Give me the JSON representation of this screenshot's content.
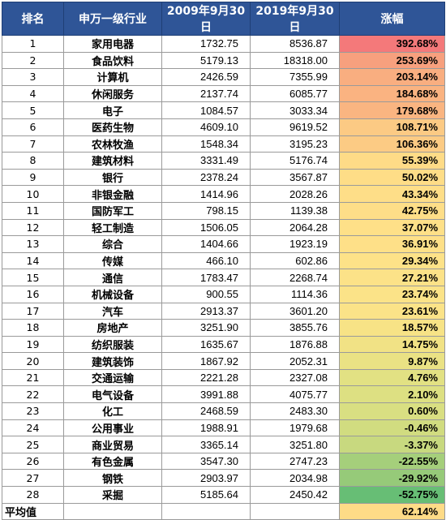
{
  "header": {
    "rank": "排名",
    "industry": "申万一级行业",
    "date1": "2009年9月30日",
    "date2": "2019年9月30日",
    "change": "涨幅"
  },
  "rows": [
    {
      "rank": "1",
      "industry": "家用电器",
      "v2009": "1732.75",
      "v2019": "8536.87",
      "change": "392.68%",
      "color": "#f4797a"
    },
    {
      "rank": "2",
      "industry": "食品饮料",
      "v2009": "5179.13",
      "v2019": "18318.00",
      "change": "253.69%",
      "color": "#f7a07e"
    },
    {
      "rank": "3",
      "industry": "计算机",
      "v2009": "2426.59",
      "v2019": "7355.99",
      "change": "203.14%",
      "color": "#f9ae80"
    },
    {
      "rank": "4",
      "industry": "休闲服务",
      "v2009": "2137.74",
      "v2019": "6085.77",
      "change": "184.68%",
      "color": "#fab381"
    },
    {
      "rank": "5",
      "industry": "电子",
      "v2009": "1084.57",
      "v2019": "3033.34",
      "change": "179.68%",
      "color": "#fab581"
    },
    {
      "rank": "6",
      "industry": "医药生物",
      "v2009": "4609.10",
      "v2019": "9619.52",
      "change": "108.71%",
      "color": "#fcca84"
    },
    {
      "rank": "7",
      "industry": "农林牧渔",
      "v2009": "1548.34",
      "v2019": "3195.23",
      "change": "106.36%",
      "color": "#fccb84"
    },
    {
      "rank": "8",
      "industry": "建筑材料",
      "v2009": "3331.49",
      "v2019": "5176.74",
      "change": "55.39%",
      "color": "#fedb87"
    },
    {
      "rank": "9",
      "industry": "银行",
      "v2009": "2378.24",
      "v2019": "3567.87",
      "change": "50.02%",
      "color": "#fedd87"
    },
    {
      "rank": "10",
      "industry": "非银金融",
      "v2009": "1414.96",
      "v2019": "2028.26",
      "change": "43.34%",
      "color": "#fede88"
    },
    {
      "rank": "11",
      "industry": "国防军工",
      "v2009": "798.15",
      "v2019": "1139.38",
      "change": "42.75%",
      "color": "#fede88"
    },
    {
      "rank": "12",
      "industry": "轻工制造",
      "v2009": "1506.05",
      "v2019": "2064.28",
      "change": "37.07%",
      "color": "#fee088"
    },
    {
      "rank": "13",
      "industry": "综合",
      "v2009": "1404.66",
      "v2019": "1923.19",
      "change": "36.91%",
      "color": "#fee088"
    },
    {
      "rank": "14",
      "industry": "传媒",
      "v2009": "466.10",
      "v2019": "602.86",
      "change": "29.34%",
      "color": "#fde288"
    },
    {
      "rank": "15",
      "industry": "通信",
      "v2009": "1783.47",
      "v2019": "2268.74",
      "change": "27.21%",
      "color": "#fce288"
    },
    {
      "rank": "16",
      "industry": "机械设备",
      "v2009": "900.55",
      "v2019": "1114.36",
      "change": "23.74%",
      "color": "#fbe388"
    },
    {
      "rank": "17",
      "industry": "汽车",
      "v2009": "2913.37",
      "v2019": "3601.20",
      "change": "23.61%",
      "color": "#fbe388"
    },
    {
      "rank": "18",
      "industry": "房地产",
      "v2009": "3251.90",
      "v2019": "3855.76",
      "change": "18.57%",
      "color": "#f7e386"
    },
    {
      "rank": "19",
      "industry": "纺织服装",
      "v2009": "1635.67",
      "v2019": "1876.88",
      "change": "14.75%",
      "color": "#f1e285"
    },
    {
      "rank": "20",
      "industry": "建筑装饰",
      "v2009": "1867.92",
      "v2019": "2052.31",
      "change": "9.87%",
      "color": "#eae284"
    },
    {
      "rank": "21",
      "industry": "交通运输",
      "v2009": "2221.28",
      "v2019": "2327.08",
      "change": "4.76%",
      "color": "#e2e183"
    },
    {
      "rank": "22",
      "industry": "电气设备",
      "v2009": "3991.88",
      "v2019": "4075.77",
      "change": "2.10%",
      "color": "#dde082"
    },
    {
      "rank": "23",
      "industry": "化工",
      "v2009": "2468.59",
      "v2019": "2483.30",
      "change": "0.60%",
      "color": "#d9df82"
    },
    {
      "rank": "24",
      "industry": "公用事业",
      "v2009": "1988.91",
      "v2019": "1979.68",
      "change": "-0.46%",
      "color": "#d1dc80"
    },
    {
      "rank": "25",
      "industry": "商业贸易",
      "v2009": "3365.14",
      "v2019": "3251.80",
      "change": "-3.37%",
      "color": "#c8d97f"
    },
    {
      "rank": "26",
      "industry": "有色金属",
      "v2009": "3547.30",
      "v2019": "2747.23",
      "change": "-22.55%",
      "color": "#a5cf7b"
    },
    {
      "rank": "27",
      "industry": "钢铁",
      "v2009": "2903.97",
      "v2019": "2034.98",
      "change": "-29.92%",
      "color": "#96ca79"
    },
    {
      "rank": "28",
      "industry": "采掘",
      "v2009": "5185.64",
      "v2019": "2450.42",
      "change": "-52.75%",
      "color": "#67be75"
    }
  ],
  "footer": {
    "label": "平均值",
    "change": "62.14%",
    "color": "#fedb87"
  }
}
